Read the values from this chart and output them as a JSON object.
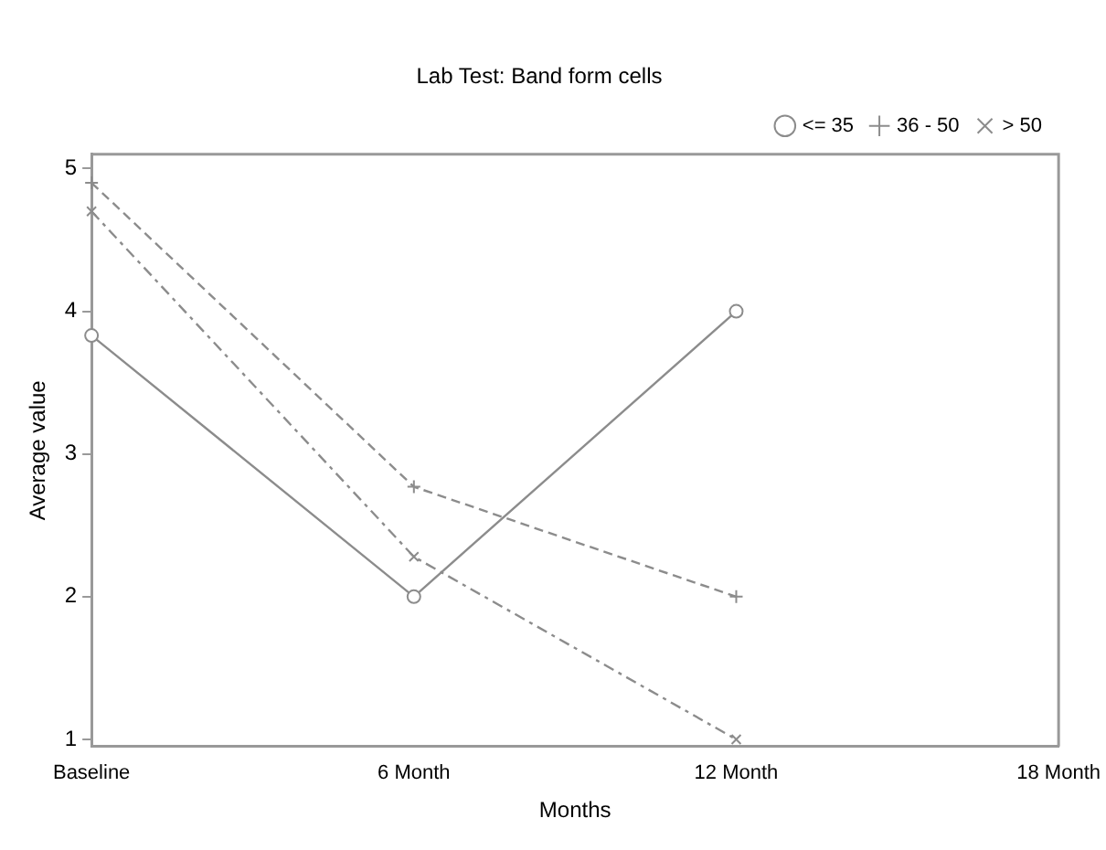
{
  "chart_data": {
    "type": "line",
    "title": "Lab Test: Band form cells",
    "xlabel": "Months",
    "ylabel": "Average value",
    "categories": [
      "Baseline",
      "6 Month",
      "12 Month",
      "18 Month"
    ],
    "series": [
      {
        "name": "<= 35",
        "color": "#8c8c8c",
        "values": [
          3.83,
          2.0,
          4.0,
          null
        ],
        "marker": "circle",
        "line_style": "solid"
      },
      {
        "name": "36 - 50",
        "color": "#8c8c8c",
        "values": [
          4.9,
          2.77,
          2.0,
          null
        ],
        "marker": "cross",
        "line_style": "dashed"
      },
      {
        "name": "> 50",
        "color": "#8c8c8c",
        "values": [
          4.7,
          2.28,
          1.0,
          null
        ],
        "marker": "x",
        "line_style": "dashdot"
      }
    ],
    "ylim": [
      0.95,
      5.1
    ],
    "yticks": [
      1,
      2,
      3,
      4,
      5
    ],
    "grid": false,
    "legend": "top right"
  }
}
